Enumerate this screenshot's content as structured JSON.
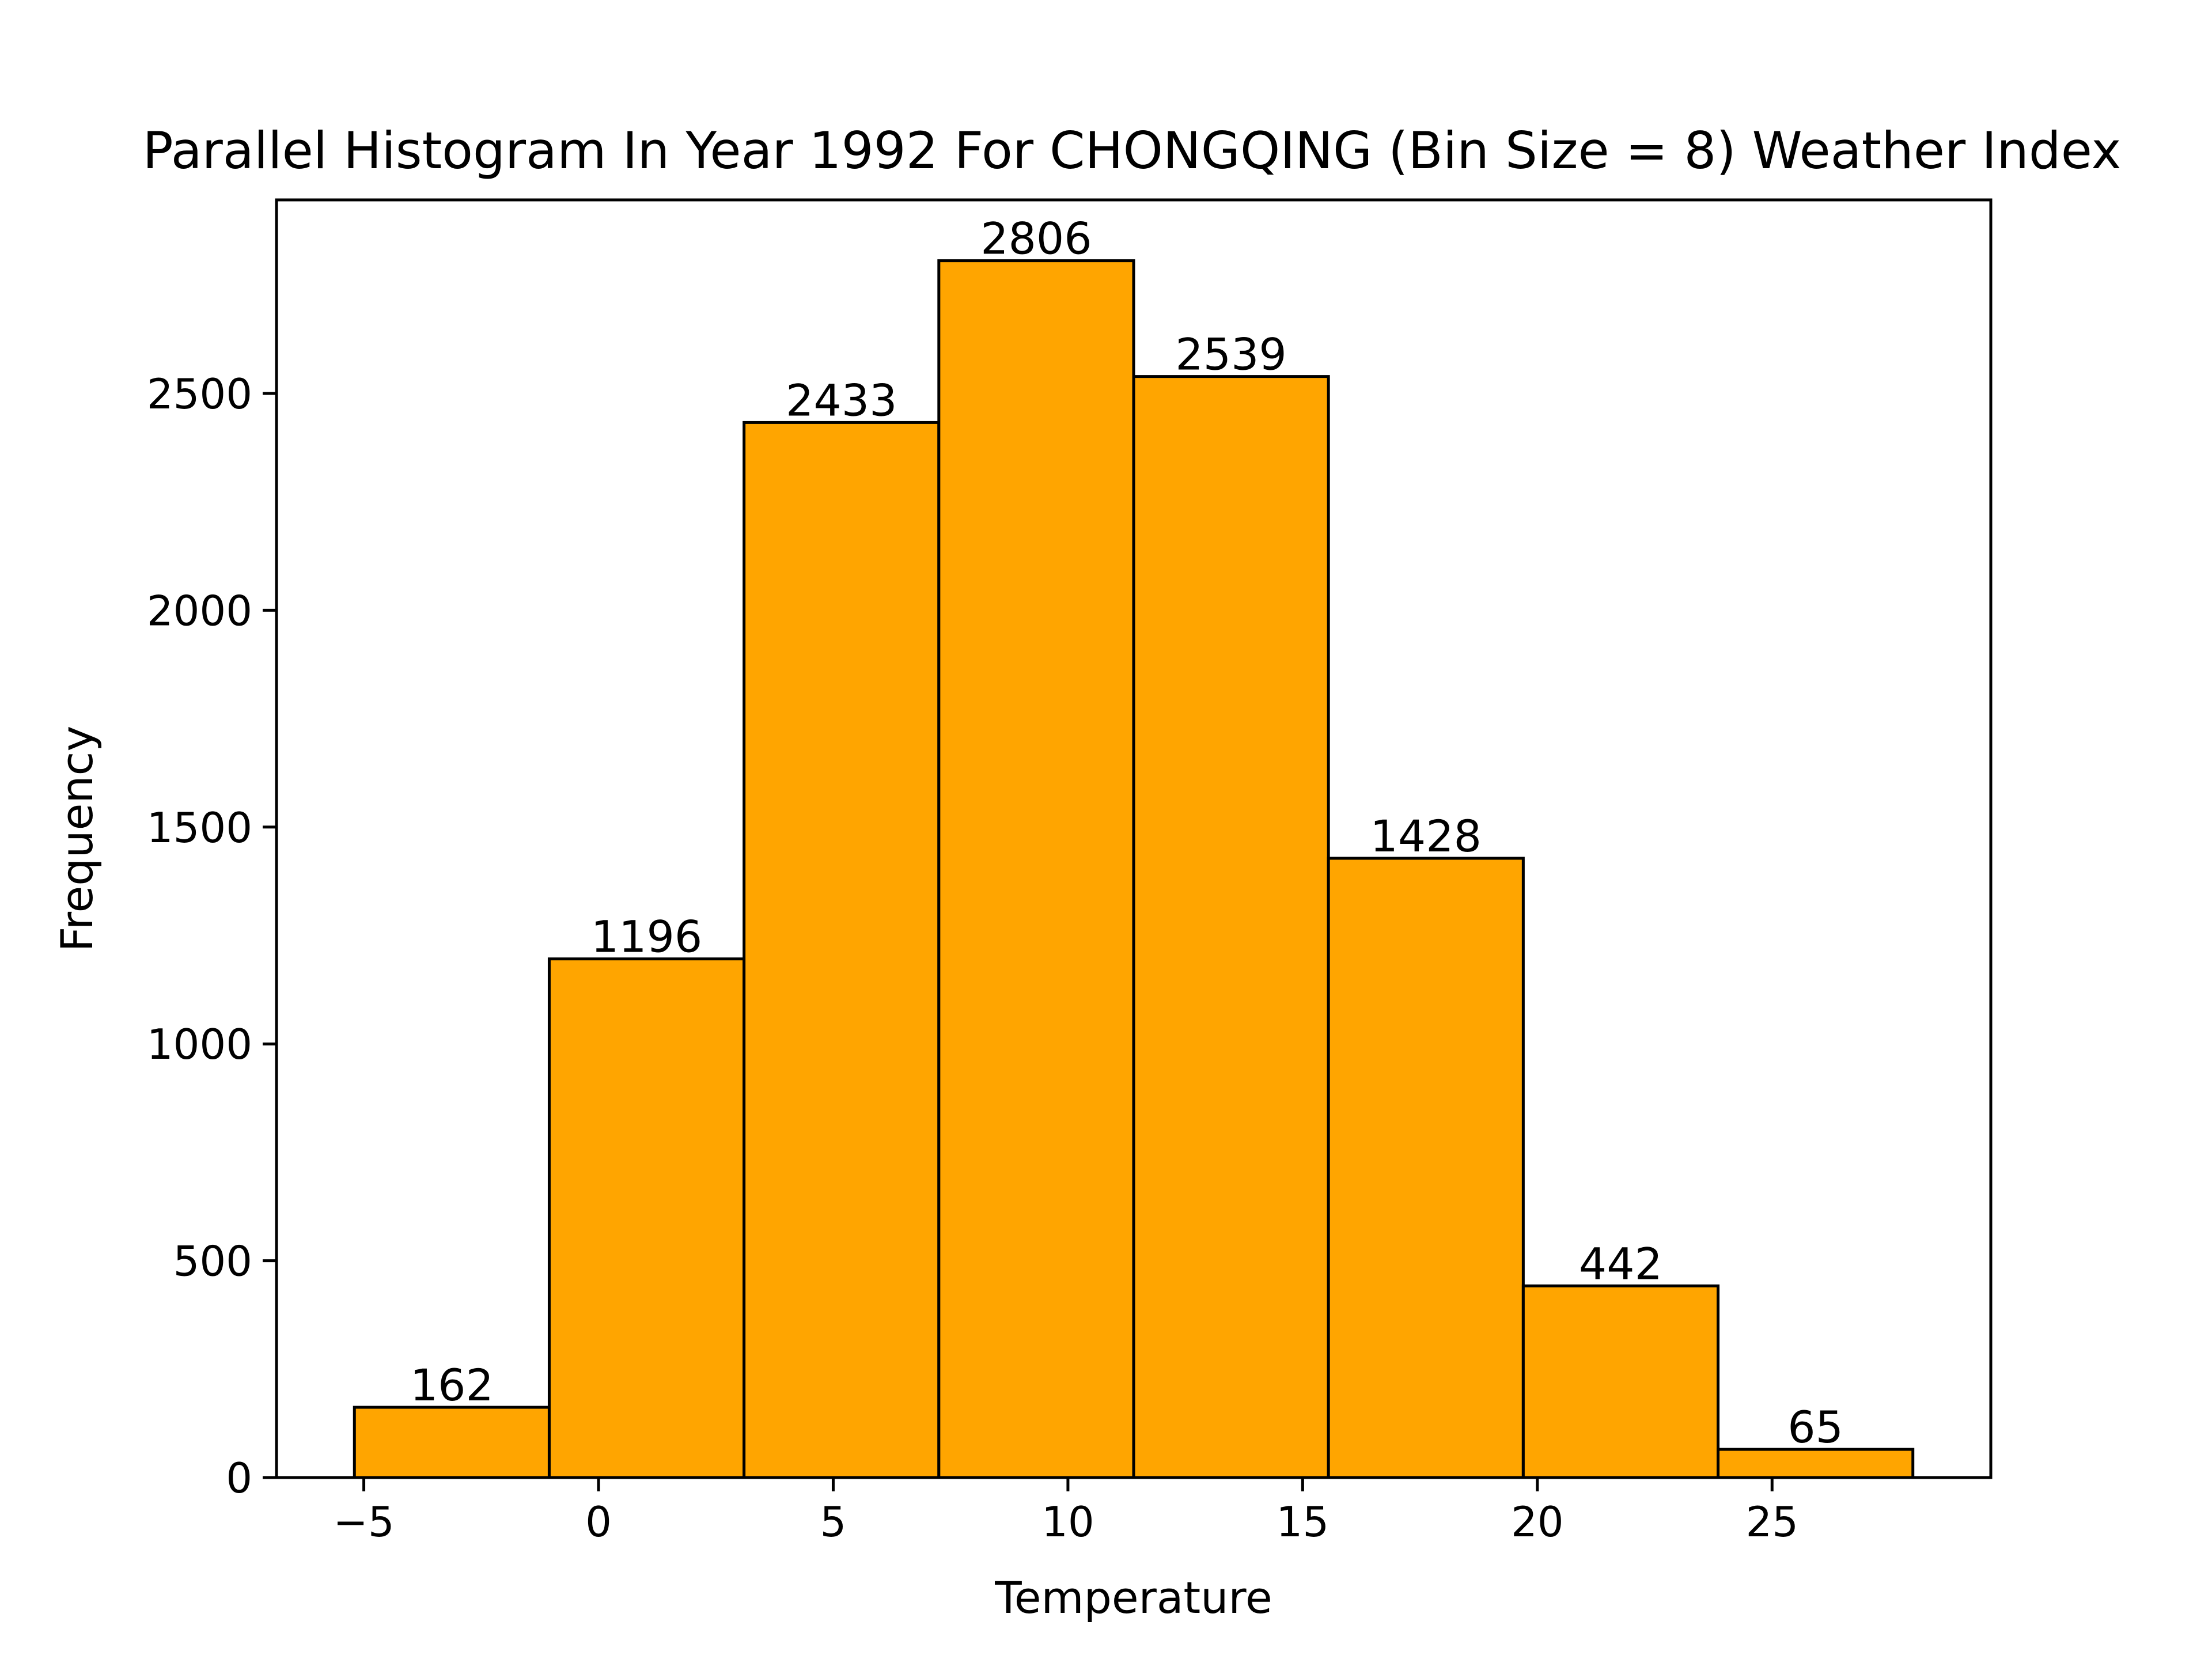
{
  "chart_data": {
    "type": "bar",
    "title": "Parallel Histogram In Year 1992 For CHONGQING (Bin Size = 8) Weather Index",
    "xlabel": "Temperature",
    "ylabel": "Frequency",
    "bins": [
      {
        "start": -5.2,
        "end": -1.05,
        "value": 162
      },
      {
        "start": -1.05,
        "end": 3.1,
        "value": 1196
      },
      {
        "start": 3.1,
        "end": 7.25,
        "value": 2433
      },
      {
        "start": 7.25,
        "end": 11.4,
        "value": 2806
      },
      {
        "start": 11.4,
        "end": 15.55,
        "value": 2539
      },
      {
        "start": 15.55,
        "end": 19.7,
        "value": 1428
      },
      {
        "start": 19.7,
        "end": 23.85,
        "value": 442
      },
      {
        "start": 23.85,
        "end": 28.0,
        "value": 65
      }
    ],
    "xlim": [
      -6.86,
      29.66
    ],
    "ylim": [
      0,
      2946.3
    ],
    "xticks": [
      -5,
      0,
      5,
      10,
      15,
      20,
      25
    ],
    "xtick_labels": [
      "−5",
      "0",
      "5",
      "10",
      "15",
      "20",
      "25"
    ],
    "yticks": [
      0,
      500,
      1000,
      1500,
      2000,
      2500
    ],
    "ytick_labels": [
      "0",
      "500",
      "1000",
      "1500",
      "2000",
      "2500"
    ],
    "grid": false,
    "bar_color": "#ffa500",
    "edge_color": "#000000"
  }
}
